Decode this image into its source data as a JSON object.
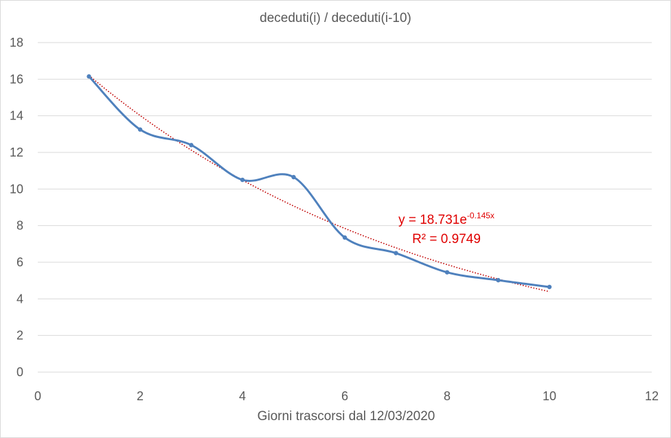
{
  "chart_data": {
    "type": "scatter",
    "title": "deceduti(i) / deceduti(i-10)",
    "xlabel": "Giorni trascorsi dal 12/03/2020",
    "ylabel": "",
    "xlim": [
      0,
      12
    ],
    "ylim": [
      0,
      18
    ],
    "xticks": [
      0,
      2,
      4,
      6,
      8,
      10,
      12
    ],
    "yticks": [
      0,
      2,
      4,
      6,
      8,
      10,
      12,
      14,
      16,
      18
    ],
    "grid": "horizontal",
    "series": [
      {
        "x": [
          1,
          2,
          3,
          4,
          5,
          6,
          7,
          8,
          9,
          10
        ],
        "y": [
          16.15,
          13.25,
          12.4,
          10.5,
          10.65,
          7.35,
          6.5,
          5.45,
          5.02,
          4.65
        ],
        "color": "#4f81bd",
        "style": "smooth-line-with-markers"
      }
    ],
    "trendline": {
      "type": "exponential",
      "a": 18.731,
      "b": -0.145,
      "x_range": [
        1,
        10
      ],
      "color": "#c00000",
      "style": "dotted",
      "equation_base": "y = 18.731e",
      "equation_exp": "-0.145x",
      "r2_label": "R² = 0.9749"
    }
  }
}
